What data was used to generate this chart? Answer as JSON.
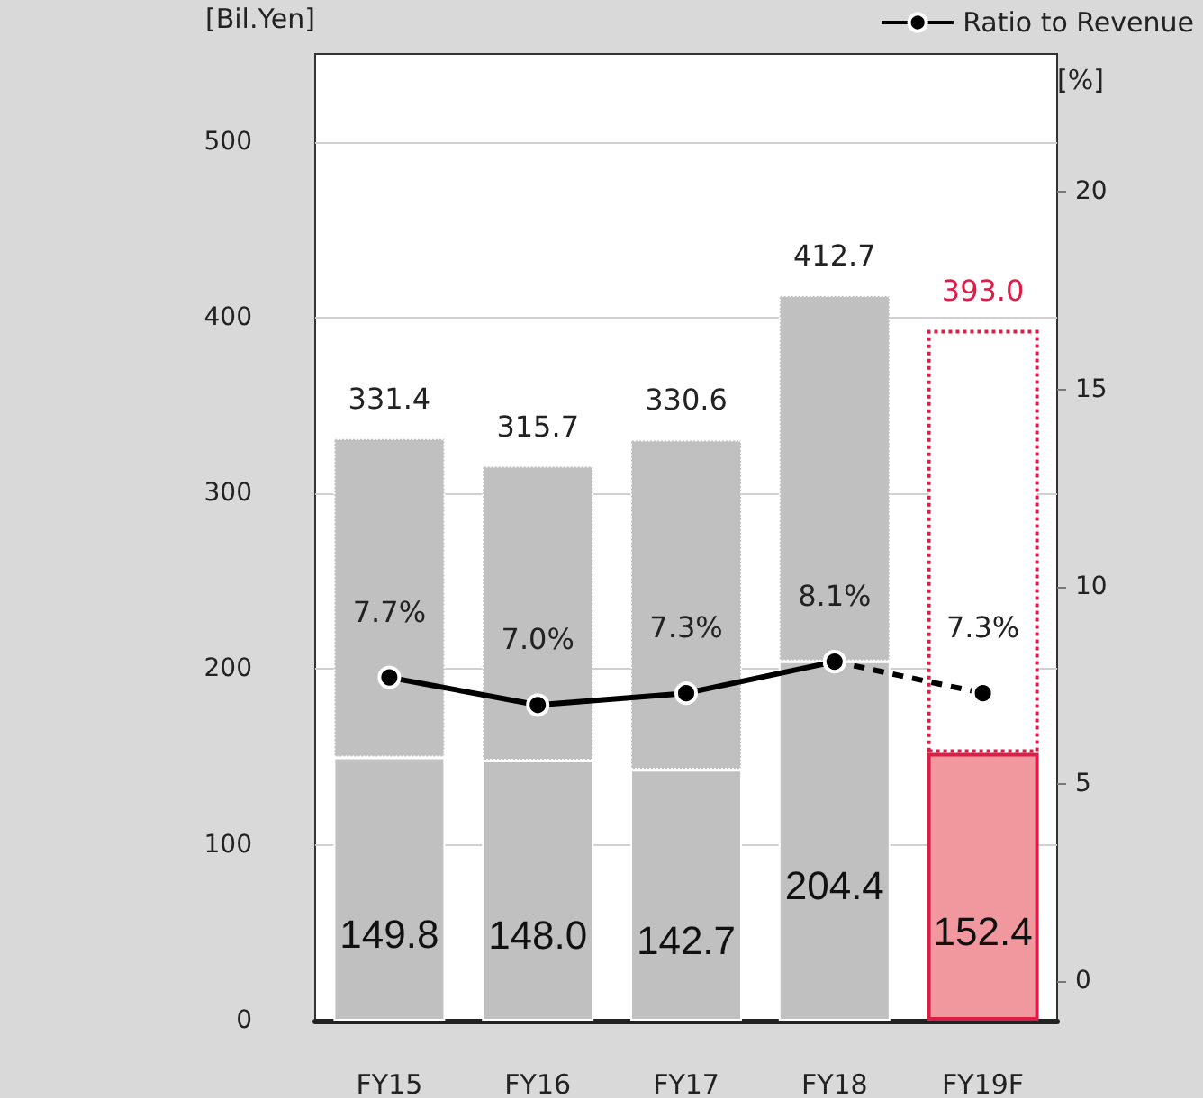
{
  "chart_data": {
    "type": "bar",
    "stacked": true,
    "ylabel": "[Bil.Yen]",
    "y2label": "[%]",
    "categories": [
      "FY15",
      "FY16",
      "FY17",
      "FY18",
      "FY19F"
    ],
    "series": [
      {
        "color": "#c0c0c0",
        "colors": [
          "#c0c0c0",
          "#c0c0c0",
          "#c0c0c0",
          "#c0c0c0",
          "#f0989e"
        ],
        "values": [
          149.8,
          148.0,
          142.7,
          204.4,
          152.4
        ],
        "value_labels": [
          "149.8",
          "148.0",
          "142.7",
          "204.4",
          "152.4"
        ]
      },
      {
        "colors": [
          "#c0c0c0",
          "#c0c0c0",
          "#c0c0c0",
          "#c0c0c0",
          "#ffffff"
        ],
        "values": [
          181.6,
          167.7,
          187.9,
          208.3,
          240.6
        ]
      },
      {
        "type": "line",
        "name": "Ratio to Revenue",
        "axis": "y2",
        "color": "#000000",
        "line_style": "solid",
        "values": [
          7.7,
          7.0,
          7.3,
          8.1,
          null
        ],
        "value_labels": [
          "7.7%",
          "7.0%",
          "7.3%",
          "8.1%",
          null
        ]
      },
      {
        "type": "line",
        "axis": "y2",
        "color": "#000000",
        "line_style": "dashed",
        "values": [
          null,
          null,
          null,
          8.1,
          7.3
        ],
        "value_labels": [
          null,
          null,
          null,
          null,
          "7.3%"
        ]
      }
    ],
    "totals": [
      "331.4",
      "315.7",
      "330.6",
      "412.7",
      "393.0"
    ],
    "ylim": [
      0,
      550
    ],
    "yticks": [
      0,
      100,
      200,
      300,
      400,
      500
    ],
    "y2lim": [
      -1,
      23.5
    ],
    "y2ticks": [
      0,
      5,
      10,
      15,
      20
    ],
    "grid": "y",
    "legend": "top right",
    "marker": "circle"
  }
}
